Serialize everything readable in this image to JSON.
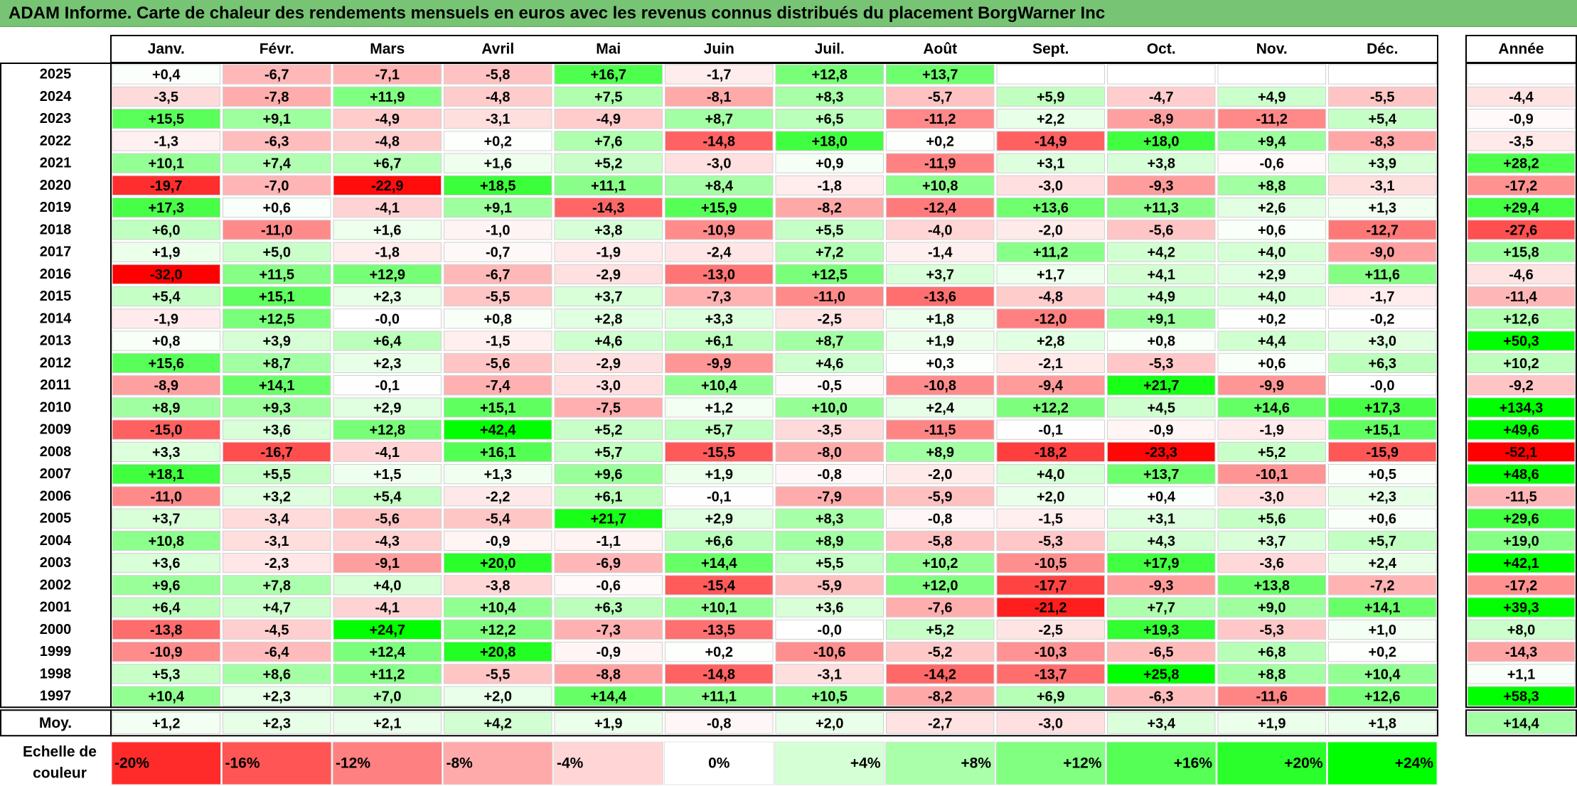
{
  "title": "ADAM Informe. Carte de chaleur des rendements mensuels en euros avec les revenus connus distribués du placement BorgWarner Inc",
  "chart_data": {
    "type": "heatmap",
    "title": "ADAM Informe. Carte de chaleur des rendements mensuels en euros avec les revenus connus distribués du placement BorgWarner Inc",
    "columns": [
      "Janv.",
      "Févr.",
      "Mars",
      "Avril",
      "Mai",
      "Juin",
      "Juil.",
      "Août",
      "Sept.",
      "Oct.",
      "Nov.",
      "Déc."
    ],
    "year_header": "Année",
    "avg_label": "Moy.",
    "rows": [
      {
        "year": "2025",
        "values": [
          "+0,4",
          "-6,7",
          "-7,1",
          "-5,8",
          "+16,7",
          "-1,7",
          "+12,8",
          "+13,7",
          "",
          "",
          "",
          ""
        ],
        "annual": ""
      },
      {
        "year": "2024",
        "values": [
          "-3,5",
          "-7,8",
          "+11,9",
          "-4,8",
          "+7,5",
          "-8,1",
          "+8,3",
          "-5,7",
          "+5,9",
          "-4,7",
          "+4,9",
          "-5,5"
        ],
        "annual": "-4,4"
      },
      {
        "year": "2023",
        "values": [
          "+15,5",
          "+9,1",
          "-4,9",
          "-3,1",
          "-4,9",
          "+8,7",
          "+6,5",
          "-11,2",
          "+2,2",
          "-8,9",
          "-11,2",
          "+5,4"
        ],
        "annual": "-0,9"
      },
      {
        "year": "2022",
        "values": [
          "-1,3",
          "-6,3",
          "-4,8",
          "+0,2",
          "+7,6",
          "-14,8",
          "+18,0",
          "+0,2",
          "-14,9",
          "+18,0",
          "+9,4",
          "-8,3"
        ],
        "annual": "-3,5"
      },
      {
        "year": "2021",
        "values": [
          "+10,1",
          "+7,4",
          "+6,7",
          "+1,6",
          "+5,2",
          "-3,0",
          "+0,9",
          "-11,9",
          "+3,1",
          "+3,8",
          "-0,6",
          "+3,9"
        ],
        "annual": "+28,2"
      },
      {
        "year": "2020",
        "values": [
          "-19,7",
          "-7,0",
          "-22,9",
          "+18,5",
          "+11,1",
          "+8,4",
          "-1,8",
          "+10,8",
          "-3,0",
          "-9,3",
          "+8,8",
          "-3,1"
        ],
        "annual": "-17,2"
      },
      {
        "year": "2019",
        "values": [
          "+17,3",
          "+0,6",
          "-4,1",
          "+9,1",
          "-14,3",
          "+15,9",
          "-8,2",
          "-12,4",
          "+13,6",
          "+11,3",
          "+2,6",
          "+1,3"
        ],
        "annual": "+29,4"
      },
      {
        "year": "2018",
        "values": [
          "+6,0",
          "-11,0",
          "+1,6",
          "-1,0",
          "+3,8",
          "-10,9",
          "+5,5",
          "-4,0",
          "-2,0",
          "-5,6",
          "+0,6",
          "-12,7"
        ],
        "annual": "-27,6"
      },
      {
        "year": "2017",
        "values": [
          "+1,9",
          "+5,0",
          "-1,8",
          "-0,7",
          "-1,9",
          "-2,4",
          "+7,2",
          "-1,4",
          "+11,2",
          "+4,2",
          "+4,0",
          "-9,0"
        ],
        "annual": "+15,8"
      },
      {
        "year": "2016",
        "values": [
          "-32,0",
          "+11,5",
          "+12,9",
          "-6,7",
          "-2,9",
          "-13,0",
          "+12,5",
          "+3,7",
          "+1,7",
          "+4,1",
          "+2,9",
          "+11,6"
        ],
        "annual": "-4,6"
      },
      {
        "year": "2015",
        "values": [
          "+5,4",
          "+15,1",
          "+2,3",
          "-5,5",
          "+3,7",
          "-7,3",
          "-11,0",
          "-13,6",
          "-4,8",
          "+4,9",
          "+4,0",
          "-1,7"
        ],
        "annual": "-11,4"
      },
      {
        "year": "2014",
        "values": [
          "-1,9",
          "+12,5",
          "-0,0",
          "+0,8",
          "+2,8",
          "+3,3",
          "-2,5",
          "+1,8",
          "-12,0",
          "+9,1",
          "+0,2",
          "-0,2"
        ],
        "annual": "+12,6"
      },
      {
        "year": "2013",
        "values": [
          "+0,8",
          "+3,9",
          "+6,4",
          "-1,5",
          "+4,6",
          "+6,1",
          "+8,7",
          "+1,9",
          "+2,8",
          "+0,8",
          "+4,4",
          "+3,0"
        ],
        "annual": "+50,3"
      },
      {
        "year": "2012",
        "values": [
          "+15,6",
          "+8,7",
          "+2,3",
          "-5,6",
          "-2,9",
          "-9,9",
          "+4,6",
          "+0,3",
          "-2,1",
          "-5,3",
          "+0,6",
          "+6,3"
        ],
        "annual": "+10,2"
      },
      {
        "year": "2011",
        "values": [
          "-8,9",
          "+14,1",
          "-0,1",
          "-7,4",
          "-3,0",
          "+10,4",
          "-0,5",
          "-10,8",
          "-9,4",
          "+21,7",
          "-9,9",
          "-0,0"
        ],
        "annual": "-9,2"
      },
      {
        "year": "2010",
        "values": [
          "+8,9",
          "+9,3",
          "+2,9",
          "+15,1",
          "-7,5",
          "+1,2",
          "+10,0",
          "+2,4",
          "+12,2",
          "+4,5",
          "+14,6",
          "+17,3"
        ],
        "annual": "+134,3"
      },
      {
        "year": "2009",
        "values": [
          "-15,0",
          "+3,6",
          "+12,8",
          "+42,4",
          "+5,2",
          "+5,7",
          "-3,5",
          "-11,5",
          "-0,1",
          "-0,9",
          "-1,9",
          "+15,1"
        ],
        "annual": "+49,6"
      },
      {
        "year": "2008",
        "values": [
          "+3,3",
          "-16,7",
          "-4,1",
          "+16,1",
          "+5,7",
          "-15,5",
          "-8,0",
          "+8,9",
          "-18,2",
          "-23,3",
          "+5,2",
          "-15,9"
        ],
        "annual": "-52,1"
      },
      {
        "year": "2007",
        "values": [
          "+18,1",
          "+5,5",
          "+1,5",
          "+1,3",
          "+9,6",
          "+1,9",
          "-0,8",
          "-2,0",
          "+4,0",
          "+13,7",
          "-10,1",
          "+0,5"
        ],
        "annual": "+48,6"
      },
      {
        "year": "2006",
        "values": [
          "-11,0",
          "+3,2",
          "+5,4",
          "-2,2",
          "+6,1",
          "-0,1",
          "-7,9",
          "-5,9",
          "+2,0",
          "+0,4",
          "-3,0",
          "+2,3"
        ],
        "annual": "-11,5"
      },
      {
        "year": "2005",
        "values": [
          "+3,7",
          "-3,4",
          "-5,6",
          "-5,4",
          "+21,7",
          "+2,9",
          "+8,3",
          "-0,8",
          "-1,5",
          "+3,1",
          "+5,6",
          "+0,6"
        ],
        "annual": "+29,6"
      },
      {
        "year": "2004",
        "values": [
          "+10,8",
          "-3,1",
          "-4,3",
          "-0,9",
          "-1,1",
          "+6,6",
          "+8,9",
          "-5,8",
          "-5,3",
          "+4,3",
          "+3,7",
          "+5,7"
        ],
        "annual": "+19,0"
      },
      {
        "year": "2003",
        "values": [
          "+3,6",
          "-2,3",
          "-9,1",
          "+20,0",
          "-6,9",
          "+14,4",
          "+5,5",
          "+10,2",
          "-10,5",
          "+17,9",
          "-3,6",
          "+2,4"
        ],
        "annual": "+42,1"
      },
      {
        "year": "2002",
        "values": [
          "+9,6",
          "+7,8",
          "+4,0",
          "-3,8",
          "-0,6",
          "-15,4",
          "-5,9",
          "+12,0",
          "-17,7",
          "-9,3",
          "+13,8",
          "-7,2"
        ],
        "annual": "-17,2"
      },
      {
        "year": "2001",
        "values": [
          "+6,4",
          "+4,7",
          "-4,1",
          "+10,4",
          "+6,3",
          "+10,1",
          "+3,6",
          "-7,6",
          "-21,2",
          "+7,7",
          "+9,0",
          "+14,1"
        ],
        "annual": "+39,3"
      },
      {
        "year": "2000",
        "values": [
          "-13,8",
          "-4,5",
          "+24,7",
          "+12,2",
          "-7,3",
          "-13,5",
          "-0,0",
          "+5,2",
          "-2,5",
          "+19,3",
          "-5,3",
          "+1,0"
        ],
        "annual": "+8,0"
      },
      {
        "year": "1999",
        "values": [
          "-10,9",
          "-6,4",
          "+12,4",
          "+20,8",
          "-0,9",
          "+0,2",
          "-10,6",
          "-5,2",
          "-10,3",
          "-6,5",
          "+6,8",
          "+0,2"
        ],
        "annual": "-14,3"
      },
      {
        "year": "1998",
        "values": [
          "+5,3",
          "+8,6",
          "+11,2",
          "-5,5",
          "-8,8",
          "-14,8",
          "-3,1",
          "-14,2",
          "-13,7",
          "+25,8",
          "+8,8",
          "+10,4"
        ],
        "annual": "+1,1"
      },
      {
        "year": "1997",
        "values": [
          "+10,4",
          "+2,3",
          "+7,0",
          "+2,0",
          "+14,4",
          "+11,1",
          "+10,5",
          "-8,2",
          "+6,9",
          "-6,3",
          "-11,6",
          "+12,6"
        ],
        "annual": "+58,3"
      }
    ],
    "averages": [
      "+1,2",
      "+2,3",
      "+2,1",
      "+4,2",
      "+1,9",
      "-0,8",
      "+2,0",
      "-2,7",
      "-3,0",
      "+3,4",
      "+1,9",
      "+1,8"
    ],
    "average_annual": "+14,4",
    "scale_label_lines": [
      "Echelle de",
      "couleur"
    ],
    "scale": [
      {
        "label": "-20%",
        "value": -20
      },
      {
        "label": "-16%",
        "value": -16
      },
      {
        "label": "-12%",
        "value": -12
      },
      {
        "label": "-8%",
        "value": -8
      },
      {
        "label": "-4%",
        "value": -4
      },
      {
        "label": "0%",
        "value": 0
      },
      {
        "label": "+4%",
        "value": 4
      },
      {
        "label": "+8%",
        "value": 8
      },
      {
        "label": "+12%",
        "value": 12
      },
      {
        "label": "+16%",
        "value": 16
      },
      {
        "label": "+20%",
        "value": 20
      },
      {
        "label": "+24%",
        "value": 24
      }
    ],
    "colors": {
      "negative": "#ff0000",
      "neutral": "#ffffff",
      "positive": "#00ff00"
    }
  }
}
